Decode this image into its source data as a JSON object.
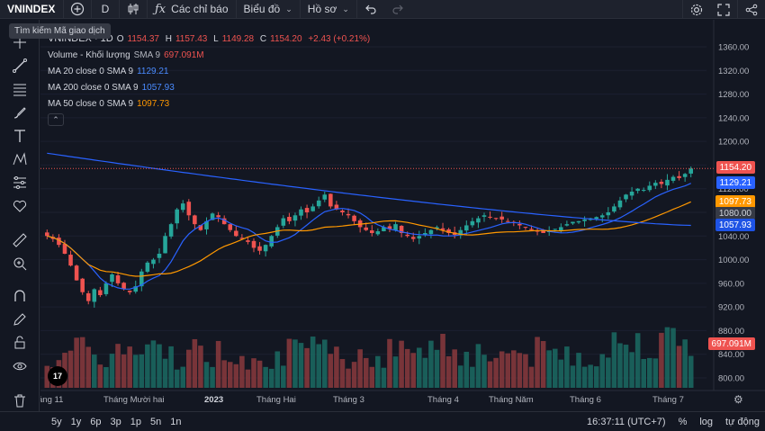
{
  "toolbar": {
    "symbol": "VNINDEX",
    "interval": "D",
    "indicators_label": "Các chỉ báo",
    "chart_type_label": "Biểu đồ",
    "profile_label": "Hồ sơ"
  },
  "tooltip": "Tìm kiếm Mã giao dịch",
  "legend": {
    "title": "VNINDEX · 1D",
    "ohlc": {
      "o_label": "O",
      "o": "1154.37",
      "h_label": "H",
      "h": "1157.43",
      "l_label": "L",
      "l": "1149.28",
      "c_label": "C",
      "c": "1154.20",
      "change": "+2.43 (+0.21%)"
    },
    "volume": {
      "label": "Volume - Khối lượng",
      "params": "SMA 9",
      "value": "697.091M"
    },
    "ma20": {
      "label": "MA 20 close 0 SMA 9",
      "value": "1129.21",
      "color": "#2962ff"
    },
    "ma200": {
      "label": "MA 200 close 0 SMA 9",
      "value": "1057.93",
      "color": "#2962ff"
    },
    "ma50": {
      "label": "MA 50 close 0 SMA 9",
      "value": "1097.73",
      "color": "#ff9800"
    }
  },
  "price_tags": {
    "last": "1154.20",
    "ma20": "1129.21",
    "ma50": "1097.73",
    "ma200": "1057.93",
    "level": "1080.00",
    "volume": "697.091M"
  },
  "colors": {
    "up": "#26a69a",
    "down": "#ef5350",
    "ma20": "#2962ff",
    "ma50": "#ff9800",
    "ma200": "#2962ff",
    "tag_last": "#ef5350",
    "tag_ma20": "#2962ff",
    "tag_ma50": "#ff9800",
    "tag_ma200": "#1e53e5",
    "tag_level": "#363a45",
    "tag_vol": "#ef5350"
  },
  "chart_data": {
    "type": "candlestick",
    "title": "VNINDEX · 1D",
    "y_ticks": [
      "1360.00",
      "1320.00",
      "1280.00",
      "1240.00",
      "1200.00",
      "1160.00",
      "1120.00",
      "1080.00",
      "1040.00",
      "1000.00",
      "960.00",
      "920.00",
      "880.00",
      "840.00",
      "800.00"
    ],
    "ylim": [
      790,
      1375
    ],
    "x_ticks": [
      {
        "label": "áng 11",
        "bold": false
      },
      {
        "label": "Tháng Mười hai",
        "bold": false
      },
      {
        "label": "2023",
        "bold": true
      },
      {
        "label": "Tháng Hai",
        "bold": false
      },
      {
        "label": "Tháng 3",
        "bold": false
      },
      {
        "label": "Tháng 4",
        "bold": false
      },
      {
        "label": "Tháng Năm",
        "bold": false
      },
      {
        "label": "Tháng 6",
        "bold": false
      },
      {
        "label": "Tháng 7",
        "bold": false
      }
    ],
    "close_series": [
      1040,
      1035,
      1025,
      1010,
      990,
      965,
      945,
      930,
      950,
      940,
      960,
      975,
      960,
      950,
      945,
      955,
      980,
      995,
      1000,
      1010,
      1040,
      1060,
      1085,
      1095,
      1075,
      1060,
      1050,
      1065,
      1078,
      1072,
      1060,
      1050,
      1040,
      1035,
      1030,
      1020,
      1015,
      1025,
      1040,
      1055,
      1070,
      1065,
      1075,
      1085,
      1080,
      1090,
      1100,
      1110,
      1090,
      1085,
      1080,
      1075,
      1065,
      1055,
      1050,
      1045,
      1048,
      1055,
      1052,
      1060,
      1045,
      1040,
      1035,
      1040,
      1045,
      1050,
      1055,
      1050,
      1045,
      1042,
      1050,
      1058,
      1065,
      1070,
      1075,
      1072,
      1070,
      1068,
      1065,
      1062,
      1058,
      1055,
      1050,
      1048,
      1045,
      1048,
      1052,
      1055,
      1060,
      1064,
      1065,
      1068,
      1070,
      1072,
      1075,
      1080,
      1090,
      1100,
      1110,
      1115,
      1120,
      1118,
      1125,
      1130,
      1128,
      1135,
      1140,
      1138,
      1145,
      1154.2
    ],
    "ma20_end": 1129.21,
    "ma50_end": 1097.73,
    "ma200_end": 1057.93,
    "last_close": 1154.2,
    "last_volume": "697.091M"
  },
  "bottom": {
    "ranges": [
      "5y",
      "1y",
      "6p",
      "3p",
      "1p",
      "5n",
      "1n"
    ],
    "time": "16:37:11 (UTC+7)",
    "percent": "%",
    "log": "log",
    "auto": "tự động"
  }
}
